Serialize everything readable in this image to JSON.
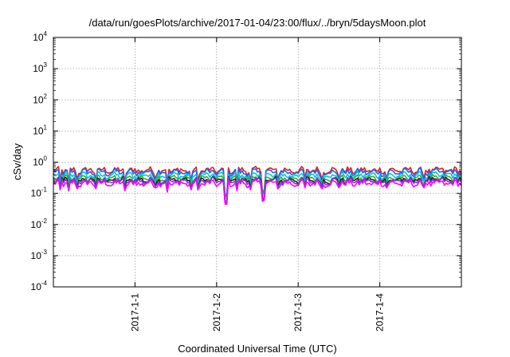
{
  "chart_data": {
    "type": "line",
    "title": "/data/run/goesPlots/archive/2017-01-04/23:00/flux/../bryn/5daysMoon.plot",
    "xlabel": "Coordinated Universal Time (UTC)",
    "ylabel": "cSv/day",
    "yscale": "log",
    "ylim": [
      0.0001,
      10000
    ],
    "y_ticks": [
      {
        "base": "10",
        "exp": "-4",
        "value": 0.0001
      },
      {
        "base": "10",
        "exp": "-3",
        "value": 0.001
      },
      {
        "base": "10",
        "exp": "-2",
        "value": 0.01
      },
      {
        "base": "10",
        "exp": "-1",
        "value": 0.1
      },
      {
        "base": "10",
        "exp": "0",
        "value": 1
      },
      {
        "base": "10",
        "exp": "1",
        "value": 10
      },
      {
        "base": "10",
        "exp": "2",
        "value": 100
      },
      {
        "base": "10",
        "exp": "3",
        "value": 1000
      },
      {
        "base": "10",
        "exp": "4",
        "value": 10000
      }
    ],
    "xlim": [
      "2016-12-31 00:00",
      "2017-01-05 00:00"
    ],
    "x_ticks": [
      {
        "label": "2017-1-1",
        "value": "2017-01-01"
      },
      {
        "label": "2017-1-2",
        "value": "2017-01-02"
      },
      {
        "label": "2017-1-3",
        "value": "2017-01-03"
      },
      {
        "label": "2017-1-4",
        "value": "2017-01-04"
      }
    ],
    "grid": true,
    "legend": "none",
    "series": [
      {
        "color": "#e02020",
        "baseline": 0.55,
        "dip_scale": 0.55
      },
      {
        "color": "#2060ff",
        "baseline": 0.48,
        "dip_scale": 0.55
      },
      {
        "color": "#00c8d8",
        "baseline": 0.38,
        "dip_scale": 0.6
      },
      {
        "color": "#30b030",
        "baseline": 0.31,
        "dip_scale": 0.62
      },
      {
        "color": "#202020",
        "baseline": 0.27,
        "dip_scale": 0.62
      },
      {
        "color": "#8a2be2",
        "baseline": 0.25,
        "dip_scale": 0.65
      },
      {
        "color": "#ff00ff",
        "baseline": 0.21,
        "dip_scale": 0.7
      }
    ],
    "dips": [
      {
        "x": "2016-12-31 02:00",
        "value": 0.13
      },
      {
        "x": "2016-12-31 04:30",
        "value": 0.12
      },
      {
        "x": "2016-12-31 07:00",
        "value": 0.14
      },
      {
        "x": "2016-12-31 12:30",
        "value": 0.14
      },
      {
        "x": "2016-12-31 21:00",
        "value": 0.12
      },
      {
        "x": "2017-01-01 06:00",
        "value": 0.15
      },
      {
        "x": "2017-01-01 09:30",
        "value": 0.11
      },
      {
        "x": "2017-01-01 16:30",
        "value": 0.13
      },
      {
        "x": "2017-01-01 18:30",
        "value": 0.13
      },
      {
        "x": "2017-01-02 02:45",
        "value": 0.045
      },
      {
        "x": "2017-01-02 06:00",
        "value": 0.12
      },
      {
        "x": "2017-01-02 10:00",
        "value": 0.13
      },
      {
        "x": "2017-01-02 13:30",
        "value": 0.055
      },
      {
        "x": "2017-01-02 14:00",
        "value": 0.06
      },
      {
        "x": "2017-01-02 18:00",
        "value": 0.14
      },
      {
        "x": "2017-01-03 02:00",
        "value": 0.15
      },
      {
        "x": "2017-01-03 07:00",
        "value": 0.14
      },
      {
        "x": "2017-01-03 12:00",
        "value": 0.15
      },
      {
        "x": "2017-01-04 02:00",
        "value": 0.15
      },
      {
        "x": "2017-01-04 13:00",
        "value": 0.15
      }
    ]
  }
}
